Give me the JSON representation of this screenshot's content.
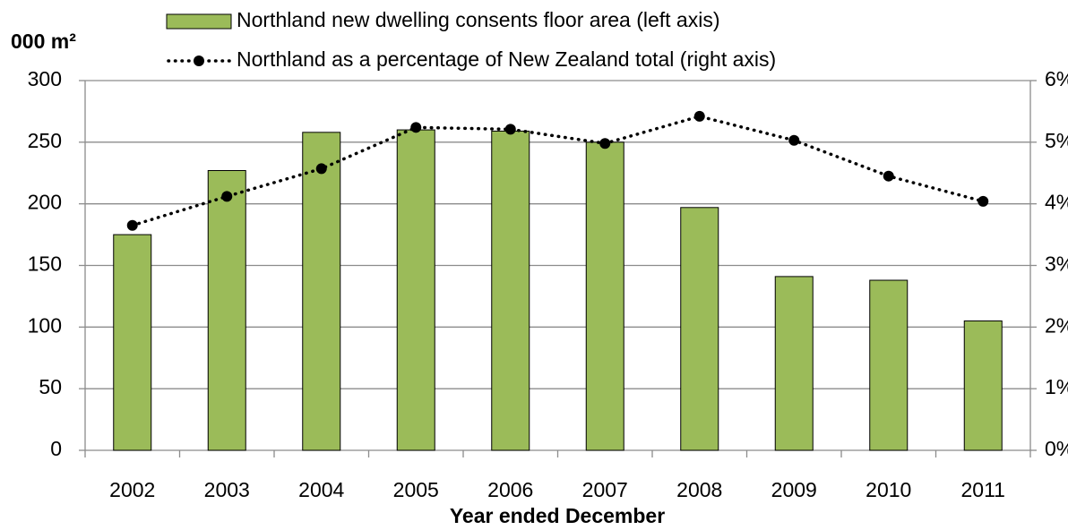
{
  "chart_data": {
    "type": "bar",
    "y_label": "000 m²",
    "x_label": "Year ended December",
    "categories": [
      "2002",
      "2003",
      "2004",
      "2005",
      "2006",
      "2007",
      "2008",
      "2009",
      "2010",
      "2011"
    ],
    "series": [
      {
        "name": "Northland new dwelling consents floor area (left axis)",
        "type": "bar",
        "color": "#9bbb59",
        "values": [
          175,
          227,
          258,
          260,
          259,
          250,
          197,
          141,
          138,
          105
        ]
      },
      {
        "name": "Northland as a percentage of New Zealand total (right axis)",
        "type": "line",
        "color": "#000000",
        "axis": "y2",
        "values": [
          3.65,
          4.12,
          4.57,
          5.24,
          5.21,
          4.98,
          5.42,
          5.03,
          4.45,
          4.04
        ]
      }
    ],
    "ylim": [
      0,
      300
    ],
    "yticks": [
      0,
      50,
      100,
      150,
      200,
      250,
      300
    ],
    "y2lim": [
      0,
      6
    ],
    "y2ticks": [
      {
        "value": 0,
        "label": "0%"
      },
      {
        "value": 1,
        "label": "1%"
      },
      {
        "value": 2,
        "label": "2%"
      },
      {
        "value": 3,
        "label": "3%"
      },
      {
        "value": 4,
        "label": "4%"
      },
      {
        "value": 5,
        "label": "5%"
      },
      {
        "value": 6,
        "label": "6%"
      }
    ],
    "grid": true
  }
}
